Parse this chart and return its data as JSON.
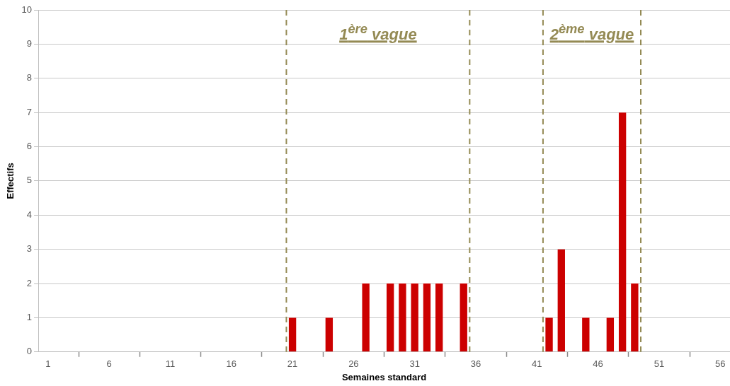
{
  "chart_data": {
    "type": "bar",
    "xlabel": "Semaines standard",
    "ylabel": "Effectifs",
    "x": [
      21,
      24,
      27,
      29,
      30,
      31,
      32,
      33,
      35,
      42,
      43,
      45,
      47,
      48,
      49
    ],
    "values": [
      1,
      1,
      2,
      2,
      2,
      2,
      2,
      2,
      2,
      1,
      3,
      1,
      1,
      7,
      2
    ],
    "color": "#cc0000",
    "xlim": [
      0.2,
      56.8
    ],
    "xticks": [
      1,
      6,
      11,
      16,
      21,
      26,
      31,
      36,
      41,
      46,
      51,
      56
    ],
    "ylim": [
      0,
      10
    ],
    "yticks": [
      0,
      1,
      2,
      3,
      4,
      5,
      6,
      7,
      8,
      9,
      10
    ],
    "grid": "y",
    "ref_lines": [
      {
        "axis": "x",
        "value": 20.5,
        "color": "#948a54",
        "line_style": "dashed"
      },
      {
        "axis": "x",
        "value": 35.5,
        "color": "#948a54",
        "line_style": "dashed"
      },
      {
        "axis": "x",
        "value": 41.5,
        "color": "#948a54",
        "line_style": "dashed"
      },
      {
        "axis": "x",
        "value": 49.5,
        "color": "#948a54",
        "line_style": "dashed"
      }
    ],
    "annotations": [
      "1$^{ère}$ vague",
      "2$^{ème}$ vague"
    ]
  }
}
